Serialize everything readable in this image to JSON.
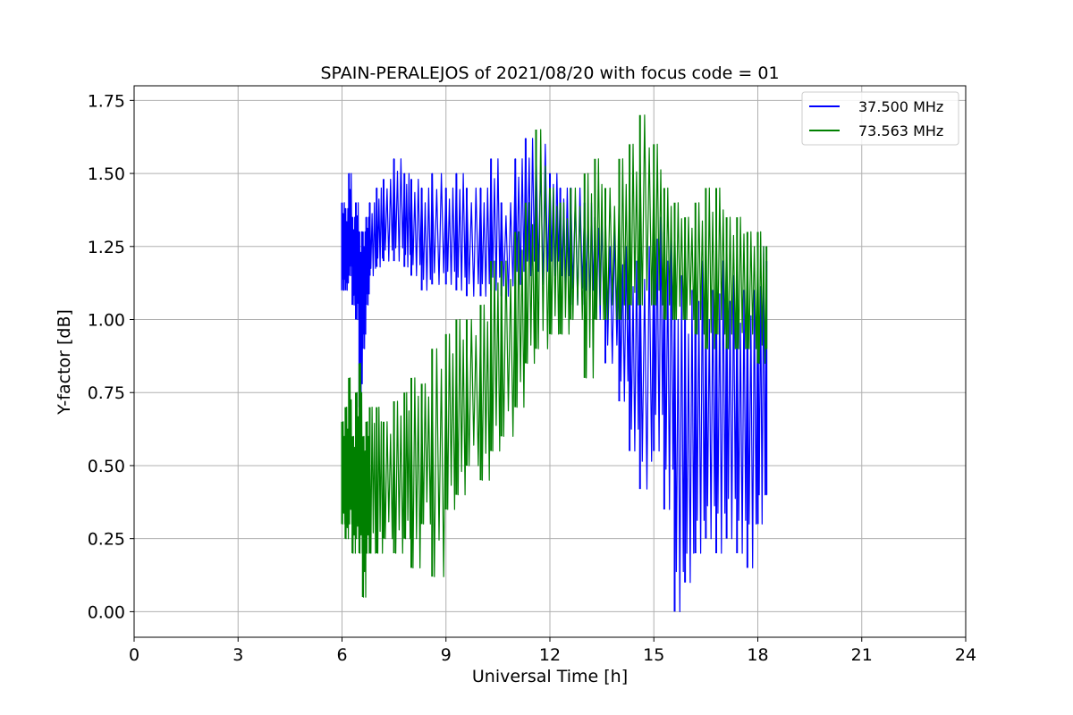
{
  "chart_data": {
    "type": "line",
    "title": "SPAIN-PERALEJOS of 2021/08/20 with focus code = 01",
    "xlabel": "Universal Time [h]",
    "ylabel": "Y-factor [dB]",
    "xlim": [
      0,
      24
    ],
    "ylim": [
      -0.0875,
      1.8
    ],
    "xticks": [
      0,
      3,
      6,
      9,
      12,
      15,
      18,
      21,
      24
    ],
    "xtick_labels": [
      "0",
      "3",
      "6",
      "9",
      "12",
      "15",
      "18",
      "21",
      "24"
    ],
    "yticks": [
      0.0,
      0.25,
      0.5,
      0.75,
      1.0,
      1.25,
      1.5,
      1.75
    ],
    "ytick_labels": [
      "0.00",
      "0.25",
      "0.50",
      "0.75",
      "1.00",
      "1.25",
      "1.50",
      "1.75"
    ],
    "grid": true,
    "legend_position": "top-right",
    "series": [
      {
        "name": "37.500 MHz",
        "color": "#0000ff",
        "x": [
          6.0,
          6.1,
          6.2,
          6.3,
          6.4,
          6.5,
          6.6,
          6.7,
          6.8,
          7.0,
          7.2,
          7.5,
          7.8,
          8.0,
          8.3,
          8.6,
          9.0,
          9.3,
          9.6,
          10.0,
          10.3,
          10.6,
          11.0,
          11.3,
          11.6,
          12.0,
          12.3,
          12.6,
          13.0,
          13.3,
          13.6,
          14.0,
          14.3,
          14.6,
          15.0,
          15.3,
          15.6,
          15.9,
          16.2,
          16.5,
          16.8,
          17.1,
          17.4,
          17.7,
          18.0,
          18.25
        ],
        "y": [
          1.25,
          1.2,
          1.28,
          1.18,
          1.22,
          1.02,
          1.1,
          1.2,
          1.25,
          1.3,
          1.35,
          1.38,
          1.35,
          1.3,
          1.25,
          1.28,
          1.3,
          1.28,
          1.25,
          1.25,
          1.28,
          1.22,
          1.3,
          1.35,
          1.3,
          1.35,
          1.3,
          1.28,
          1.25,
          1.2,
          1.1,
          1.0,
          0.85,
          0.8,
          1.05,
          0.9,
          0.55,
          0.5,
          0.65,
          0.7,
          0.75,
          0.8,
          0.65,
          0.75,
          0.7,
          0.85
        ],
        "y_min": [
          1.1,
          1.1,
          1.15,
          1.05,
          1.0,
          0.7,
          0.9,
          1.05,
          1.15,
          1.18,
          1.2,
          1.2,
          1.18,
          1.15,
          1.1,
          1.12,
          1.12,
          1.1,
          1.08,
          1.08,
          1.1,
          1.08,
          1.12,
          1.15,
          1.12,
          1.15,
          1.1,
          1.05,
          1.05,
          1.0,
          0.85,
          0.72,
          0.55,
          0.42,
          0.55,
          0.35,
          0.0,
          0.1,
          0.2,
          0.25,
          0.2,
          0.25,
          0.2,
          0.15,
          0.3,
          0.4
        ],
        "y_max": [
          1.4,
          1.38,
          1.5,
          1.35,
          1.4,
          1.3,
          1.3,
          1.35,
          1.4,
          1.45,
          1.48,
          1.55,
          1.5,
          1.48,
          1.45,
          1.5,
          1.45,
          1.5,
          1.45,
          1.45,
          1.55,
          1.4,
          1.55,
          1.62,
          1.6,
          1.5,
          1.45,
          1.45,
          1.4,
          1.35,
          1.3,
          1.25,
          1.2,
          1.25,
          1.35,
          1.3,
          1.15,
          1.1,
          1.2,
          1.1,
          1.2,
          1.15,
          1.1,
          1.1,
          1.25,
          1.2
        ]
      },
      {
        "name": "73.563 MHz",
        "color": "#008000",
        "x": [
          6.0,
          6.1,
          6.2,
          6.3,
          6.4,
          6.5,
          6.6,
          6.7,
          6.8,
          7.0,
          7.2,
          7.5,
          7.8,
          8.0,
          8.3,
          8.6,
          9.0,
          9.3,
          9.6,
          10.0,
          10.3,
          10.6,
          11.0,
          11.3,
          11.6,
          12.0,
          12.3,
          12.6,
          13.0,
          13.3,
          13.6,
          14.0,
          14.3,
          14.6,
          15.0,
          15.3,
          15.6,
          15.9,
          16.2,
          16.5,
          16.8,
          17.1,
          17.4,
          17.7,
          18.0,
          18.25
        ],
        "y": [
          0.45,
          0.4,
          0.5,
          0.45,
          0.42,
          0.45,
          0.4,
          0.45,
          0.48,
          0.5,
          0.48,
          0.52,
          0.5,
          0.55,
          0.6,
          0.62,
          0.68,
          0.72,
          0.78,
          0.82,
          0.9,
          0.95,
          1.05,
          1.1,
          1.15,
          1.2,
          1.18,
          1.2,
          1.22,
          1.2,
          1.2,
          1.2,
          1.22,
          1.25,
          1.25,
          1.2,
          1.18,
          1.2,
          1.15,
          1.12,
          1.15,
          1.1,
          1.12,
          1.1,
          1.1,
          1.1
        ],
        "y_min": [
          0.3,
          0.25,
          0.3,
          0.2,
          0.25,
          0.2,
          0.05,
          0.2,
          0.2,
          0.2,
          0.25,
          0.2,
          0.25,
          0.15,
          0.3,
          0.12,
          0.35,
          0.4,
          0.5,
          0.45,
          0.55,
          0.6,
          0.7,
          0.85,
          0.9,
          0.95,
          0.95,
          1.0,
          0.8,
          1.0,
          1.0,
          1.0,
          1.05,
          1.05,
          1.05,
          1.0,
          1.0,
          1.0,
          0.95,
          0.9,
          0.95,
          0.9,
          0.9,
          0.9,
          0.85,
          0.9
        ],
        "y_max": [
          0.65,
          0.7,
          0.8,
          0.6,
          0.75,
          0.85,
          0.6,
          0.65,
          0.7,
          0.7,
          0.65,
          0.72,
          0.75,
          0.8,
          0.78,
          0.9,
          0.95,
          1.0,
          1.0,
          1.05,
          1.2,
          1.2,
          1.3,
          1.4,
          1.65,
          1.45,
          1.4,
          1.45,
          1.5,
          1.55,
          1.45,
          1.55,
          1.6,
          1.7,
          1.6,
          1.45,
          1.4,
          1.35,
          1.4,
          1.45,
          1.45,
          1.35,
          1.35,
          1.3,
          1.3,
          1.25
        ]
      }
    ]
  }
}
